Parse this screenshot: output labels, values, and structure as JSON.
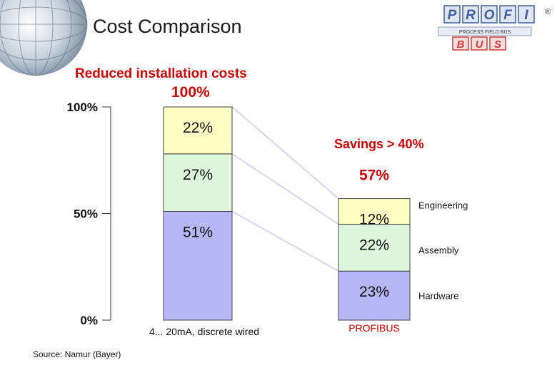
{
  "slide": {
    "title": "Cost Comparison",
    "source": "Source: Namur (Bayer)"
  },
  "logo": {
    "top_word_letters": [
      "P",
      "R",
      "O",
      "F",
      "I"
    ],
    "bottom_word_letters": [
      "B",
      "U",
      "S"
    ],
    "tagline": "PROCESS FIELD BUS",
    "registered_mark": "®",
    "brand_blue": "#3f5e9e",
    "brand_red": "#d43b3b"
  },
  "chart_data": {
    "type": "bar",
    "stacked": true,
    "title": "Reduced installation costs",
    "categories": [
      "4... 20mA, discrete wired",
      "PROFIBUS"
    ],
    "ylim": [
      0,
      100
    ],
    "yticks": [
      0,
      50,
      100
    ],
    "ytick_labels": [
      "0%",
      "50%",
      "100%"
    ],
    "series": [
      {
        "name": "Hardware",
        "values": [
          51,
          23
        ],
        "labels": [
          "51%",
          "23%"
        ],
        "color": "#b7b7f7"
      },
      {
        "name": "Assembly",
        "values": [
          27,
          22
        ],
        "labels": [
          "27%",
          "22%"
        ],
        "color": "#ddf7dd"
      },
      {
        "name": "Engineering",
        "values": [
          22,
          12
        ],
        "labels": [
          "22%",
          "12%"
        ],
        "color": "#fdfdc4"
      }
    ],
    "totals": [
      "100%",
      "57%"
    ],
    "annotation": "Savings > 40%",
    "colors": {
      "accent": "#cc0000",
      "category_2_label": "#cc0000",
      "connector": "#d6d6f0"
    }
  }
}
